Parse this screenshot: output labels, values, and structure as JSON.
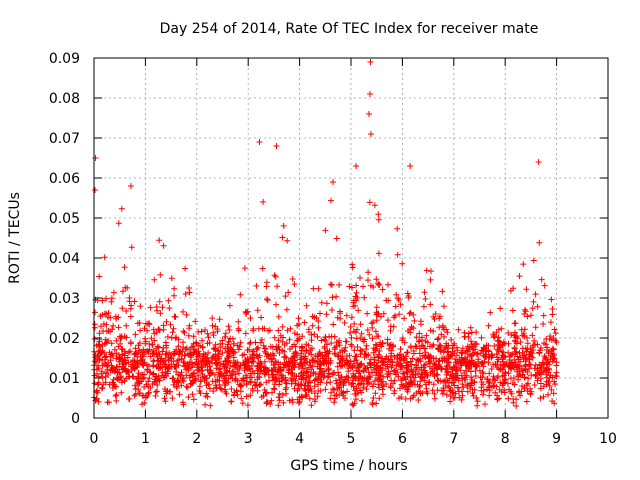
{
  "chart_data": {
    "type": "scatter",
    "title": "Day 254 of 2014, Rate Of TEC Index for receiver mate",
    "xlabel": "GPS time / hours",
    "ylabel": "ROTI / TECUs",
    "xlim": [
      0,
      10
    ],
    "ylim": [
      0,
      0.09
    ],
    "x_ticks": [
      "0",
      "1",
      "2",
      "3",
      "4",
      "5",
      "6",
      "7",
      "8",
      "9",
      "10"
    ],
    "y_ticks": [
      "0",
      "0.01",
      "0.02",
      "0.03",
      "0.04",
      "0.05",
      "0.06",
      "0.07",
      "0.08",
      "0.09"
    ],
    "grid": true,
    "marker": "+",
    "series_color": "#ff0000",
    "data_extent_hours": [
      0,
      9
    ],
    "baseline_roti": 0.012,
    "notable_points": [
      {
        "x": 0.03,
        "y": 0.065
      },
      {
        "x": 0.02,
        "y": 0.057
      },
      {
        "x": 0.72,
        "y": 0.058
      },
      {
        "x": 3.22,
        "y": 0.069
      },
      {
        "x": 3.55,
        "y": 0.068
      },
      {
        "x": 4.65,
        "y": 0.059
      },
      {
        "x": 5.38,
        "y": 0.089
      },
      {
        "x": 5.37,
        "y": 0.081
      },
      {
        "x": 5.35,
        "y": 0.076
      },
      {
        "x": 5.39,
        "y": 0.071
      },
      {
        "x": 5.1,
        "y": 0.063
      },
      {
        "x": 6.15,
        "y": 0.063
      },
      {
        "x": 8.65,
        "y": 0.064
      }
    ],
    "activity_envelope": [
      {
        "x": 0.0,
        "upper": 0.05
      },
      {
        "x": 0.3,
        "upper": 0.045
      },
      {
        "x": 0.6,
        "upper": 0.055
      },
      {
        "x": 0.9,
        "upper": 0.03
      },
      {
        "x": 1.2,
        "upper": 0.047
      },
      {
        "x": 1.5,
        "upper": 0.04
      },
      {
        "x": 1.8,
        "upper": 0.04
      },
      {
        "x": 2.0,
        "upper": 0.025
      },
      {
        "x": 2.5,
        "upper": 0.026
      },
      {
        "x": 3.0,
        "upper": 0.04
      },
      {
        "x": 3.3,
        "upper": 0.06
      },
      {
        "x": 3.6,
        "upper": 0.055
      },
      {
        "x": 3.9,
        "upper": 0.035
      },
      {
        "x": 4.3,
        "upper": 0.035
      },
      {
        "x": 4.6,
        "upper": 0.055
      },
      {
        "x": 5.0,
        "upper": 0.05
      },
      {
        "x": 5.4,
        "upper": 0.06
      },
      {
        "x": 5.7,
        "upper": 0.045
      },
      {
        "x": 6.1,
        "upper": 0.05
      },
      {
        "x": 6.5,
        "upper": 0.045
      },
      {
        "x": 7.0,
        "upper": 0.025
      },
      {
        "x": 7.5,
        "upper": 0.022
      },
      {
        "x": 8.0,
        "upper": 0.035
      },
      {
        "x": 8.4,
        "upper": 0.04
      },
      {
        "x": 8.7,
        "upper": 0.055
      },
      {
        "x": 9.0,
        "upper": 0.04
      }
    ]
  }
}
